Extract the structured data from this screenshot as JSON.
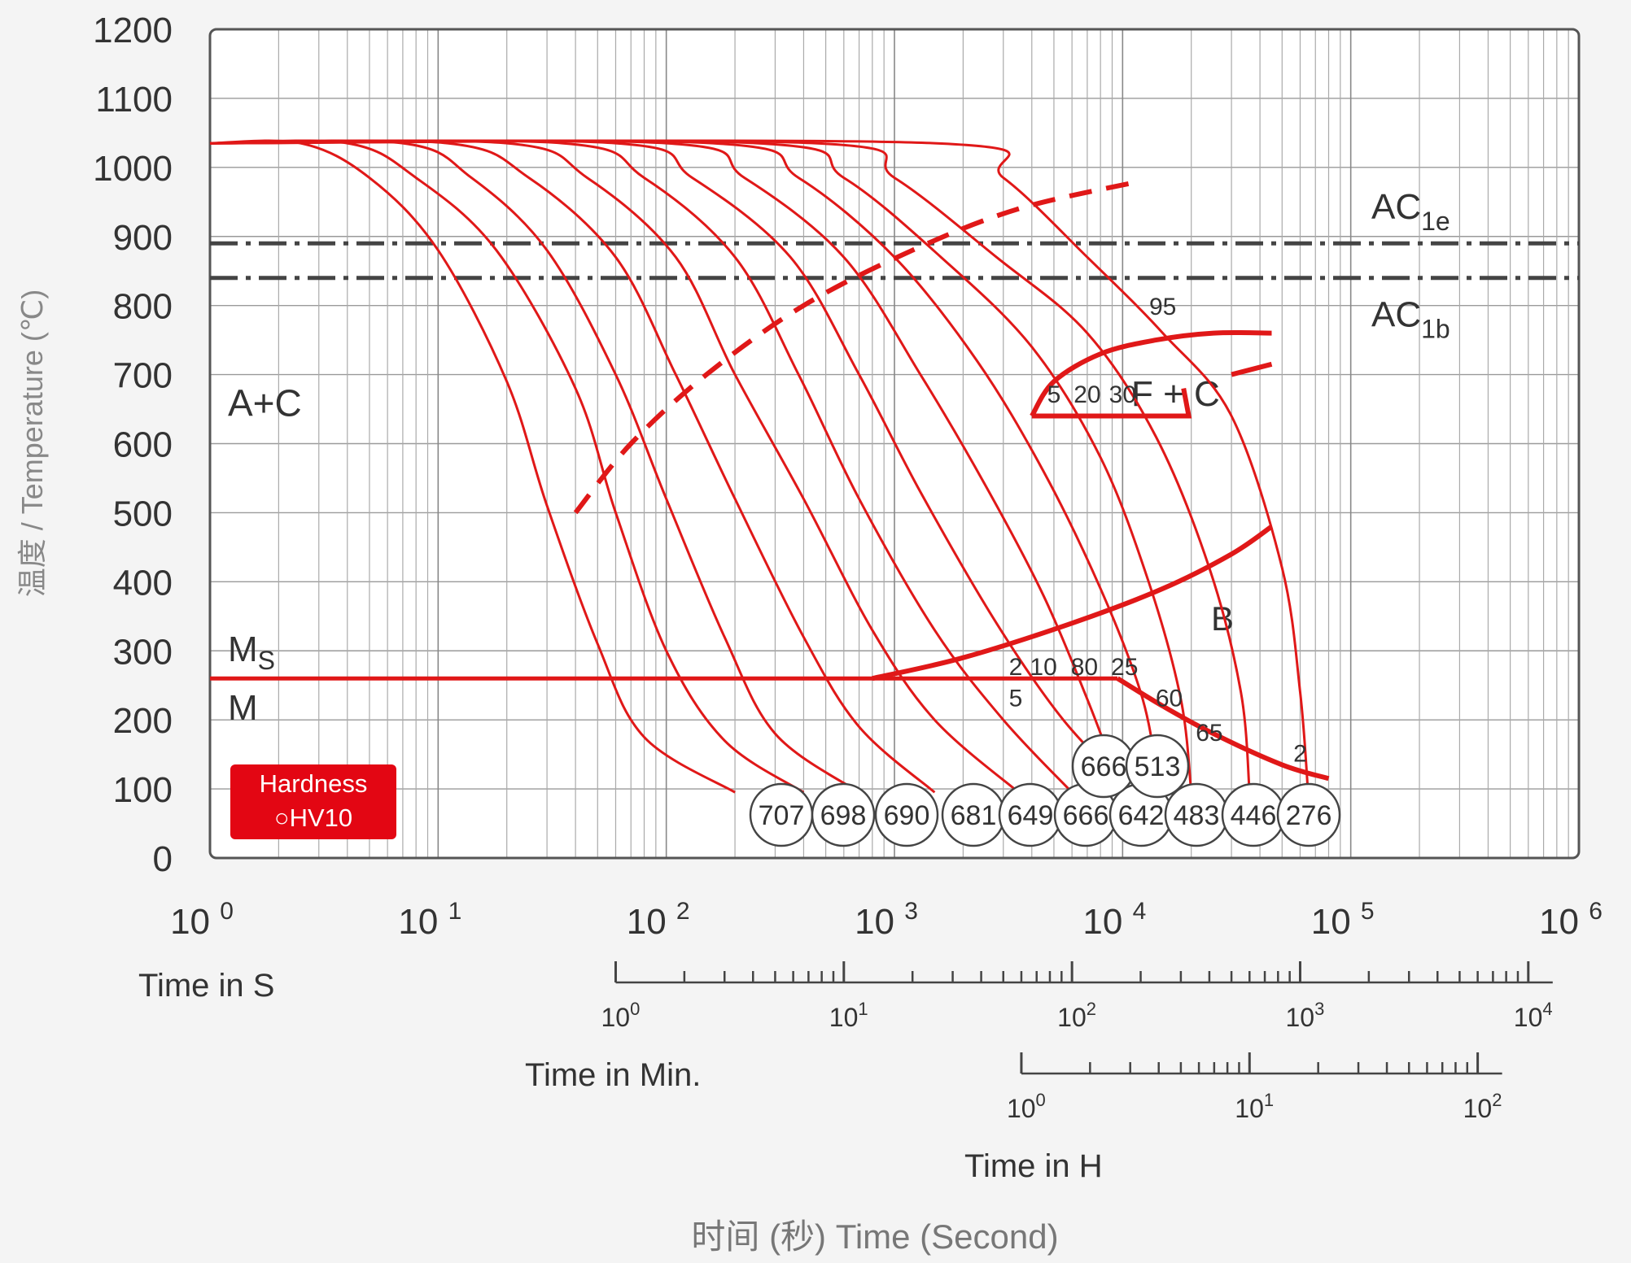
{
  "chart_data": {
    "type": "line",
    "y_axis": {
      "label": "温度 / Temperature (℃)",
      "ticks": [
        "1200",
        "1100",
        "1000",
        "900",
        "800",
        "700",
        "600",
        "500",
        "400",
        "300",
        "200",
        "100",
        "0"
      ],
      "ylim": [
        0,
        1200
      ]
    },
    "x_axis": {
      "label": "时间 (秒)  Time (Second)",
      "scale": "log",
      "xlim_seconds": [
        1,
        1000000
      ],
      "tick_base": "10",
      "tick_exponents": [
        "0",
        "1",
        "2",
        "3",
        "4",
        "5",
        "6"
      ],
      "secondary_axes": [
        {
          "label": "Time in S"
        },
        {
          "label": "Time in Min.",
          "tick_base": "10",
          "tick_exponents": [
            "0",
            "1",
            "2",
            "3",
            "4"
          ]
        },
        {
          "label": "Time in H",
          "tick_base": "10",
          "tick_exponents": [
            "0",
            "1",
            "2"
          ]
        }
      ]
    },
    "reference_lines": [
      {
        "name": "AC",
        "subscript": "1e",
        "temperature": 890
      },
      {
        "name": "AC",
        "subscript": "1b",
        "temperature": 840
      }
    ],
    "region_labels": {
      "austenite": "A+C",
      "ms": "M",
      "ms_sub": "S",
      "martensite": "M",
      "ferrite": "F + C",
      "bainite": "B"
    },
    "ms_temperature": 260,
    "austenitizing_temperature": 1035,
    "cooling_curves": [
      {
        "hardness": "707",
        "points": [
          [
            1,
            1035
          ],
          [
            2.5,
            1035
          ],
          [
            5,
            985
          ],
          [
            10,
            880
          ],
          [
            20,
            690
          ],
          [
            30,
            510
          ],
          [
            50,
            310
          ],
          [
            80,
            175
          ],
          [
            200,
            95
          ]
        ]
      },
      {
        "hardness": "698",
        "points": [
          [
            1,
            1035
          ],
          [
            4,
            1035
          ],
          [
            8,
            985
          ],
          [
            18,
            880
          ],
          [
            40,
            680
          ],
          [
            60,
            500
          ],
          [
            100,
            300
          ],
          [
            180,
            170
          ],
          [
            400,
            95
          ]
        ]
      },
      {
        "hardness": "690",
        "points": [
          [
            1,
            1035
          ],
          [
            7,
            1035
          ],
          [
            14,
            985
          ],
          [
            30,
            880
          ],
          [
            60,
            700
          ],
          [
            100,
            520
          ],
          [
            180,
            320
          ],
          [
            300,
            180
          ],
          [
            700,
            95
          ]
        ]
      },
      {
        "hardness": "681",
        "points": [
          [
            1,
            1035
          ],
          [
            11,
            1035
          ],
          [
            25,
            985
          ],
          [
            60,
            870
          ],
          [
            110,
            700
          ],
          [
            200,
            520
          ],
          [
            400,
            320
          ],
          [
            700,
            190
          ],
          [
            1500,
            95
          ]
        ]
      },
      {
        "hardness": "649",
        "points": [
          [
            1,
            1035
          ],
          [
            20,
            1035
          ],
          [
            45,
            985
          ],
          [
            110,
            870
          ],
          [
            200,
            700
          ],
          [
            400,
            520
          ],
          [
            800,
            330
          ],
          [
            1500,
            200
          ],
          [
            3500,
            95
          ]
        ]
      },
      {
        "hardness": "666",
        "points": [
          [
            1,
            1035
          ],
          [
            35,
            1035
          ],
          [
            80,
            985
          ],
          [
            200,
            870
          ],
          [
            380,
            700
          ],
          [
            700,
            520
          ],
          [
            1500,
            330
          ],
          [
            3000,
            200
          ],
          [
            6000,
            95
          ]
        ]
      },
      {
        "hardness": "642",
        "points": [
          [
            1,
            1035
          ],
          [
            60,
            1035
          ],
          [
            130,
            985
          ],
          [
            350,
            870
          ],
          [
            700,
            700
          ],
          [
            1300,
            530
          ],
          [
            2800,
            340
          ],
          [
            5500,
            200
          ],
          [
            11000,
            95
          ]
        ]
      },
      {
        "hardness": "666",
        "points": [
          [
            1,
            1035
          ],
          [
            100,
            1035
          ],
          [
            220,
            985
          ],
          [
            600,
            870
          ],
          [
            1300,
            700
          ],
          [
            2500,
            540
          ],
          [
            4500,
            380
          ],
          [
            7000,
            230
          ],
          [
            9000,
            135
          ]
        ]
      },
      {
        "hardness": "513",
        "points": [
          [
            1,
            1035
          ],
          [
            160,
            1035
          ],
          [
            380,
            985
          ],
          [
            1000,
            870
          ],
          [
            2300,
            720
          ],
          [
            4500,
            560
          ],
          [
            8000,
            390
          ],
          [
            12000,
            240
          ],
          [
            14000,
            135
          ]
        ]
      },
      {
        "hardness": "483",
        "points": [
          [
            1,
            1035
          ],
          [
            250,
            1035
          ],
          [
            600,
            985
          ],
          [
            1600,
            870
          ],
          [
            4000,
            740
          ],
          [
            8000,
            580
          ],
          [
            13000,
            400
          ],
          [
            18000,
            230
          ],
          [
            20000,
            95
          ]
        ]
      },
      {
        "hardness": "446",
        "points": [
          [
            1,
            1035
          ],
          [
            450,
            1035
          ],
          [
            1000,
            985
          ],
          [
            2800,
            870
          ],
          [
            7000,
            760
          ],
          [
            14000,
            610
          ],
          [
            24000,
            420
          ],
          [
            33000,
            240
          ],
          [
            36000,
            95
          ]
        ]
      },
      {
        "hardness": "276",
        "points": [
          [
            1,
            1035
          ],
          [
            1500,
            1035
          ],
          [
            3000,
            985
          ],
          [
            7000,
            870
          ],
          [
            15000,
            760
          ],
          [
            30000,
            640
          ],
          [
            50000,
            420
          ],
          [
            60000,
            240
          ],
          [
            65000,
            95
          ]
        ]
      }
    ],
    "transformation_lines": [
      {
        "name": "start-dashed",
        "points": [
          [
            40,
            500
          ],
          [
            70,
            600
          ],
          [
            150,
            700
          ],
          [
            400,
            800
          ],
          [
            1200,
            880
          ],
          [
            3500,
            940
          ],
          [
            12000,
            980
          ]
        ]
      },
      {
        "name": "bainite-start",
        "points": [
          [
            800,
            260
          ],
          [
            2000,
            290
          ],
          [
            6000,
            340
          ],
          [
            15000,
            390
          ],
          [
            30000,
            440
          ],
          [
            45000,
            480
          ]
        ]
      },
      {
        "name": "martensite-end",
        "points": [
          [
            9500,
            260
          ],
          [
            15000,
            220
          ],
          [
            25000,
            180
          ],
          [
            50000,
            135
          ],
          [
            80000,
            115
          ]
        ]
      }
    ],
    "percent_labels": [
      "95",
      "5",
      "20",
      "30",
      "2",
      "10",
      "80",
      "25",
      "5",
      "60",
      "65",
      "2"
    ],
    "hardness_legend": {
      "title": "Hardness",
      "unit": "HV10"
    }
  }
}
